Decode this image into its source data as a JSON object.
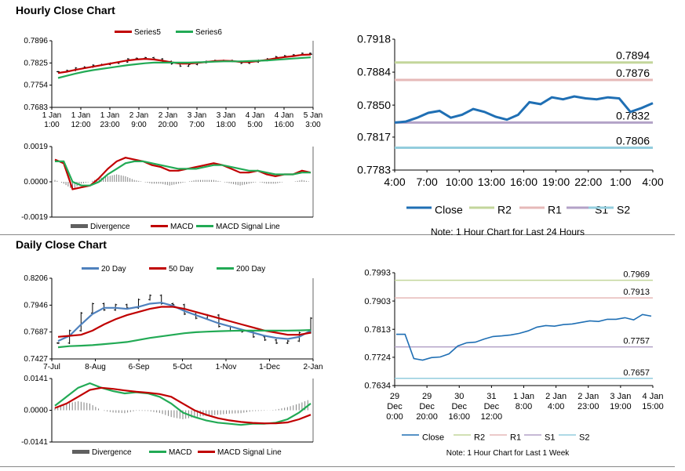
{
  "sections": {
    "hourly_title": "Hourly Close Chart",
    "daily_title": "Daily Close Chart"
  },
  "chart_data": [
    {
      "id": "hourly-price",
      "type": "candlestick+line",
      "legend": [
        "Series5",
        "Series6"
      ],
      "colors": {
        "series5": "#c00000",
        "series6": "#22aa55",
        "candle": "#000000"
      },
      "y_ticks": [
        "0.7896",
        "0.7825",
        "0.7754",
        "0.7683"
      ],
      "ylim": [
        0.7683,
        0.7896
      ],
      "x_ticks": [
        [
          "1 Jan",
          "1:00"
        ],
        [
          "1 Jan",
          "12:00"
        ],
        [
          "1 Jan",
          "23:00"
        ],
        [
          "2 Jan",
          "9:00"
        ],
        [
          "2 Jan",
          "20:00"
        ],
        [
          "3 Jan",
          "7:00"
        ],
        [
          "3 Jan",
          "18:00"
        ],
        [
          "4 Jan",
          "5:00"
        ],
        [
          "4 Jan",
          "16:00"
        ],
        [
          "5 Jan",
          "3:00"
        ]
      ],
      "close": [
        0.7797,
        0.7801,
        0.7809,
        0.7812,
        0.7818,
        0.782,
        0.7824,
        0.7828,
        0.7838,
        0.784,
        0.7842,
        0.7838,
        0.783,
        0.7822,
        0.7815,
        0.782,
        0.7826,
        0.783,
        0.7833,
        0.7833,
        0.783,
        0.7824,
        0.7828,
        0.7833,
        0.7838,
        0.7845,
        0.7848,
        0.7851,
        0.7856,
        0.7853
      ],
      "series5": [
        0.7793,
        0.7797,
        0.7803,
        0.7808,
        0.7813,
        0.7818,
        0.7823,
        0.7828,
        0.7833,
        0.7836,
        0.7838,
        0.7836,
        0.7832,
        0.7827,
        0.7823,
        0.7823,
        0.7825,
        0.7828,
        0.7831,
        0.7832,
        0.7831,
        0.7828,
        0.7828,
        0.7831,
        0.7835,
        0.784,
        0.7844,
        0.7847,
        0.7851,
        0.7852
      ],
      "series6": [
        0.7777,
        0.7784,
        0.7791,
        0.7797,
        0.7802,
        0.7806,
        0.781,
        0.7814,
        0.7818,
        0.7821,
        0.7824,
        0.7826,
        0.7826,
        0.7826,
        0.7826,
        0.7826,
        0.7827,
        0.7828,
        0.7829,
        0.783,
        0.783,
        0.783,
        0.7831,
        0.7832,
        0.7833,
        0.7835,
        0.7837,
        0.7839,
        0.7841,
        0.7843
      ]
    },
    {
      "id": "hourly-macd",
      "type": "bar+line",
      "legend": [
        "Divergence",
        "MACD",
        "MACD Signal Line"
      ],
      "colors": {
        "divergence": "#808080",
        "macd": "#c00000",
        "signal": "#22aa55"
      },
      "y_ticks": [
        "0.0019",
        "0.0000",
        "-0.0019"
      ],
      "ylim": [
        -0.0019,
        0.0019
      ],
      "macd": [
        0.0012,
        0.001,
        -0.0004,
        -0.0003,
        -0.0002,
        0.0002,
        0.0007,
        0.0011,
        0.0013,
        0.0012,
        0.0011,
        0.0009,
        0.0008,
        0.0006,
        0.0006,
        0.0007,
        0.0008,
        0.0009,
        0.001,
        0.0009,
        0.0007,
        0.0005,
        0.0005,
        0.0006,
        0.0004,
        0.0003,
        0.0004,
        0.0004,
        0.0006,
        0.0005
      ],
      "signal": [
        0.0011,
        0.0011,
        0.0,
        -0.0002,
        -0.0002,
        0.0,
        0.0004,
        0.0007,
        0.001,
        0.0011,
        0.0011,
        0.001,
        0.0009,
        0.0008,
        0.0007,
        0.0007,
        0.0007,
        0.0008,
        0.0009,
        0.0009,
        0.0008,
        0.0007,
        0.0006,
        0.0006,
        0.0005,
        0.0004,
        0.0004,
        0.0004,
        0.0005,
        0.0005
      ],
      "divergence": [
        0.0001,
        -0.0001,
        -0.0004,
        -0.0001,
        0.0,
        0.0002,
        0.0003,
        0.0004,
        0.0003,
        0.0001,
        0.0,
        -0.0001,
        -0.0001,
        -0.0002,
        -0.0001,
        0.0,
        0.0001,
        0.0001,
        0.0001,
        0.0,
        -0.0001,
        -0.0002,
        -0.0001,
        0.0,
        -0.0001,
        -0.0001,
        0.0,
        0.0,
        0.0001,
        0.0
      ]
    },
    {
      "id": "hourly-24h",
      "type": "line",
      "y_ticks": [
        "0.7918",
        "0.7884",
        "0.7850",
        "0.7817",
        "0.7783"
      ],
      "ylim": [
        0.7783,
        0.7918
      ],
      "x_ticks": [
        "4:00",
        "7:00",
        "10:00",
        "13:00",
        "16:00",
        "19:00",
        "22:00",
        "1:00",
        "4:00"
      ],
      "close": [
        0.7832,
        0.7833,
        0.7837,
        0.7842,
        0.7844,
        0.7837,
        0.784,
        0.7846,
        0.7843,
        0.7838,
        0.7835,
        0.784,
        0.7853,
        0.7851,
        0.7858,
        0.7856,
        0.7859,
        0.7857,
        0.7856,
        0.7858,
        0.7857,
        0.7843,
        0.7847,
        0.7852
      ],
      "levels": [
        {
          "name": "R2",
          "value": 0.7894,
          "label": "0.7894",
          "color": "#c3d69b"
        },
        {
          "name": "R1",
          "value": 0.7876,
          "label": "0.7876",
          "color": "#e6b9b8"
        },
        {
          "name": "S1",
          "value": 0.7832,
          "label": "0.7832",
          "color": "#b3a2c7"
        },
        {
          "name": "S2",
          "value": 0.7806,
          "label": "0.7806",
          "color": "#93cddd"
        }
      ],
      "close_color": "#1f6fb4",
      "legend": [
        "Close",
        "R2",
        "R1",
        "S1",
        "S2"
      ],
      "note": "Note: 1 Hour Chart for Last 24 Hours"
    },
    {
      "id": "daily-price",
      "type": "candlestick+line",
      "legend": [
        "20 Day",
        "50 Day",
        "200 Day"
      ],
      "colors": {
        "d20": "#4f81bd",
        "d50": "#c00000",
        "d200": "#22aa55",
        "candle": "#000000"
      },
      "y_ticks": [
        "0.8206",
        "0.7946",
        "0.7687",
        "0.7427"
      ],
      "ylim": [
        0.7427,
        0.8206
      ],
      "x_ticks": [
        "7-Jul",
        "8-Aug",
        "6-Sep",
        "5-Oct",
        "1-Nov",
        "1-Dec",
        "2-Jan"
      ],
      "close": [
        0.758,
        0.77,
        0.787,
        0.796,
        0.79,
        0.795,
        0.792,
        0.8,
        0.804,
        0.796,
        0.795,
        0.786,
        0.782,
        0.785,
        0.774,
        0.77,
        0.769,
        0.764,
        0.761,
        0.758,
        0.76,
        0.768,
        0.782
      ],
      "d20": [
        0.76,
        0.765,
        0.776,
        0.786,
        0.792,
        0.792,
        0.791,
        0.793,
        0.796,
        0.797,
        0.794,
        0.789,
        0.785,
        0.781,
        0.777,
        0.774,
        0.771,
        0.768,
        0.765,
        0.763,
        0.762,
        0.764,
        0.77
      ],
      "d50": [
        0.764,
        0.765,
        0.766,
        0.77,
        0.776,
        0.781,
        0.785,
        0.788,
        0.791,
        0.793,
        0.793,
        0.791,
        0.788,
        0.785,
        0.782,
        0.779,
        0.776,
        0.773,
        0.77,
        0.768,
        0.766,
        0.766,
        0.768
      ],
      "d200": [
        0.754,
        0.755,
        0.7555,
        0.756,
        0.757,
        0.758,
        0.759,
        0.761,
        0.763,
        0.7645,
        0.766,
        0.7675,
        0.7685,
        0.769,
        0.7695,
        0.7698,
        0.77,
        0.77,
        0.77,
        0.77,
        0.77,
        0.7702,
        0.7706
      ]
    },
    {
      "id": "daily-macd",
      "type": "bar+line",
      "legend": [
        "Divergence",
        "MACD",
        "MACD Signal Line"
      ],
      "colors": {
        "divergence": "#808080",
        "macd": "#22aa55",
        "signal": "#c00000"
      },
      "y_ticks": [
        "0.0141",
        "0.0000",
        "-0.0141"
      ],
      "ylim": [
        -0.0141,
        0.0141
      ],
      "macd": [
        0.002,
        0.006,
        0.01,
        0.012,
        0.01,
        0.0085,
        0.0075,
        0.008,
        0.0075,
        0.006,
        0.003,
        -0.001,
        -0.003,
        -0.0045,
        -0.0055,
        -0.006,
        -0.0065,
        -0.006,
        -0.006,
        -0.0055,
        -0.004,
        -0.001,
        0.003
      ],
      "signal": [
        0.001,
        0.003,
        0.006,
        0.009,
        0.01,
        0.0095,
        0.0088,
        0.0082,
        0.0078,
        0.0072,
        0.006,
        0.003,
        0.0,
        -0.002,
        -0.0035,
        -0.0045,
        -0.0052,
        -0.0056,
        -0.0058,
        -0.0058,
        -0.0054,
        -0.004,
        -0.002
      ],
      "divergence": [
        0.001,
        0.003,
        0.004,
        0.003,
        0.0,
        -0.001,
        -0.0013,
        -0.0002,
        -0.0003,
        -0.0012,
        -0.003,
        -0.004,
        -0.003,
        -0.0025,
        -0.002,
        -0.0015,
        -0.0013,
        -0.0004,
        -0.0002,
        0.0003,
        0.0014,
        0.003,
        0.005
      ]
    },
    {
      "id": "daily-week",
      "type": "line",
      "y_ticks": [
        "0.7993",
        "0.7903",
        "0.7813",
        "0.7724",
        "0.7634"
      ],
      "ylim": [
        0.7634,
        0.7993
      ],
      "x_ticks": [
        [
          "29",
          "Dec",
          "0:00"
        ],
        [
          "29",
          "Dec",
          "20:00"
        ],
        [
          "30",
          "Dec",
          "16:00"
        ],
        [
          "31",
          "Dec",
          "12:00"
        ],
        [
          "1 Jan",
          "8:00"
        ],
        [
          "2 Jan",
          "4:00"
        ],
        [
          "2 Jan",
          "23:00"
        ],
        [
          "3 Jan",
          "19:00"
        ],
        [
          "4 Jan",
          "15:00"
        ]
      ],
      "close": [
        0.7797,
        0.7797,
        0.772,
        0.7715,
        0.7723,
        0.7725,
        0.7735,
        0.776,
        0.777,
        0.7772,
        0.7782,
        0.779,
        0.7792,
        0.7795,
        0.78,
        0.7808,
        0.782,
        0.7825,
        0.7823,
        0.7828,
        0.783,
        0.7835,
        0.784,
        0.7838,
        0.7845,
        0.7845,
        0.785,
        0.7843,
        0.786,
        0.7855
      ],
      "levels": [
        {
          "name": "R2",
          "value": 0.7969,
          "label": "0.7969",
          "color": "#c3d69b"
        },
        {
          "name": "R1",
          "value": 0.7913,
          "label": "0.7913",
          "color": "#e6b9b8"
        },
        {
          "name": "S1",
          "value": 0.7757,
          "label": "0.7757",
          "color": "#b3a2c7"
        },
        {
          "name": "S2",
          "value": 0.7657,
          "label": "0.7657",
          "color": "#93cddd"
        }
      ],
      "close_color": "#1f6fb4",
      "legend": [
        "Close",
        "R2",
        "R1",
        "S1",
        "S2"
      ],
      "note": "Note: 1 Hour Chart for Last 1 Week"
    }
  ]
}
